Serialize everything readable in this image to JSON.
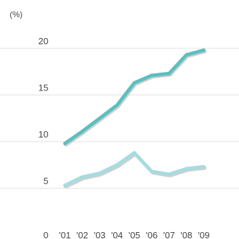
{
  "chart_data": {
    "type": "line",
    "title": "",
    "xlabel": "",
    "ylabel": "(%)",
    "categories": [
      "'01",
      "'02",
      "'03",
      "'04",
      "'05",
      "'06",
      "'07",
      "'08",
      "'09"
    ],
    "y_ticks": [
      "0",
      "5",
      "10",
      "15",
      "20"
    ],
    "ylim": [
      0,
      20
    ],
    "grid": true,
    "series": [
      {
        "values": [
          9.8,
          11.1,
          12.5,
          13.9,
          16.3,
          17.1,
          17.3,
          19.3,
          19.8
        ],
        "color": "#5bbfbf"
      },
      {
        "values": [
          5.3,
          6.2,
          6.6,
          7.5,
          8.8,
          6.8,
          6.5,
          7.1,
          7.3
        ],
        "color": "#a6dce0"
      }
    ]
  }
}
